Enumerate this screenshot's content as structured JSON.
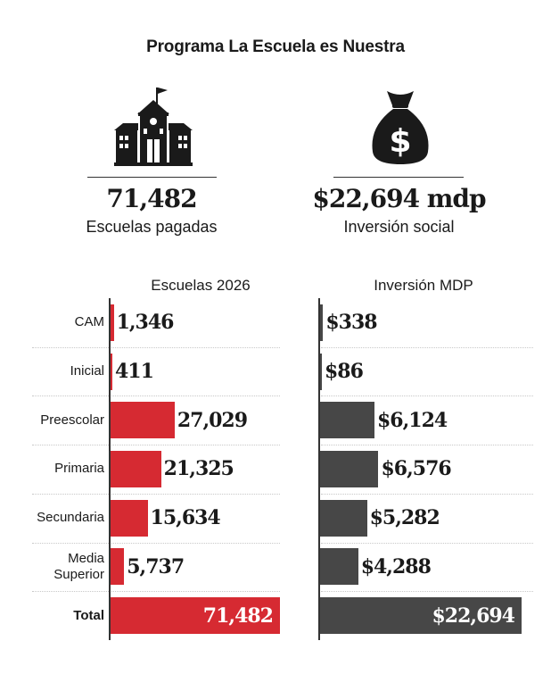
{
  "header": {
    "title": "Programa La Escuela es Nuestra"
  },
  "summary": {
    "schools": {
      "value": "71,482",
      "label": "Escuelas pagadas",
      "icon": "school-icon"
    },
    "investment": {
      "value": "$22,694 mdp",
      "label": "Inversión social",
      "icon": "money-bag-icon"
    }
  },
  "colors": {
    "red": "#d62a32",
    "gray": "#474747"
  },
  "chart_data": [
    {
      "type": "bar",
      "orientation": "horizontal",
      "title": "Escuelas 2026",
      "categories": [
        "CAM",
        "Inicial",
        "Preescolar",
        "Primaria",
        "Secundaria",
        "Media Superior",
        "Total"
      ],
      "values": [
        1346,
        411,
        27029,
        21325,
        15634,
        5737,
        71482
      ],
      "labels": [
        "1,346",
        "411",
        "27,029",
        "21,325",
        "15,634",
        "5,737",
        "71,482"
      ],
      "color": "#d62a32"
    },
    {
      "type": "bar",
      "orientation": "horizontal",
      "title": "Inversión MDP",
      "categories": [
        "CAM",
        "Inicial",
        "Preescolar",
        "Primaria",
        "Secundaria",
        "Media Superior",
        "Total"
      ],
      "values": [
        338,
        86,
        6124,
        6576,
        5282,
        4288,
        22694
      ],
      "labels": [
        "$338",
        "$86",
        "$6,124",
        "$6,576",
        "$5,282",
        "$4,288",
        "$22,694"
      ],
      "color": "#474747"
    }
  ]
}
